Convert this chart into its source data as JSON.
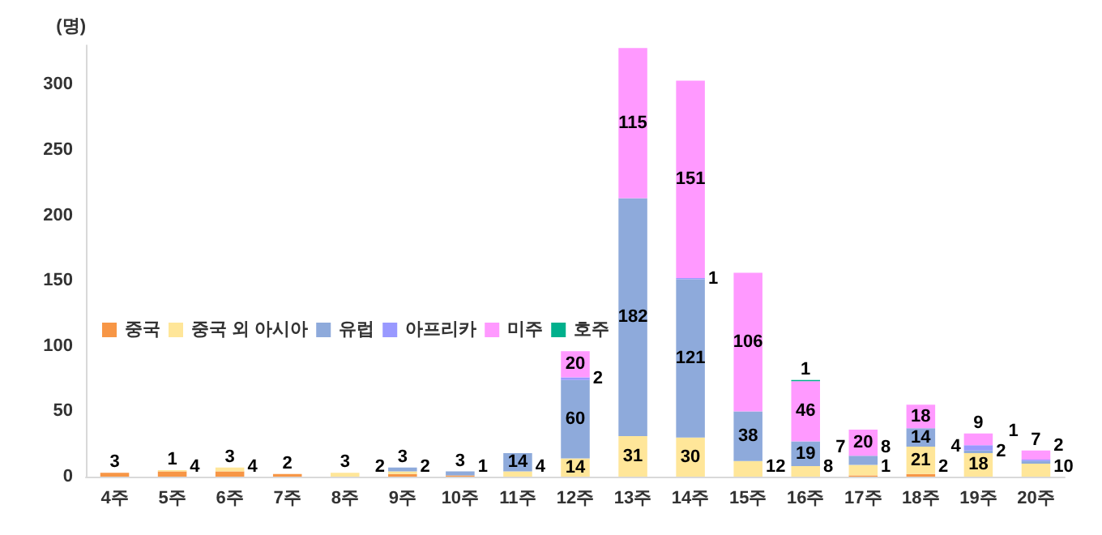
{
  "chart_data": {
    "type": "bar",
    "stacked": true,
    "ylabel": "(명)",
    "categories": [
      "4주",
      "5주",
      "6주",
      "7주",
      "8주",
      "9주",
      "10주",
      "11주",
      "12주",
      "13주",
      "14주",
      "15주",
      "16주",
      "17주",
      "18주",
      "19주",
      "20주"
    ],
    "series": [
      {
        "name": "중국",
        "color": "#f79646",
        "values": [
          3,
          4,
          4,
          2,
          null,
          2,
          1,
          null,
          null,
          null,
          null,
          null,
          null,
          1,
          2,
          null,
          null
        ]
      },
      {
        "name": "중국 외 아시아",
        "color": "#ffe699",
        "values": [
          null,
          1,
          3,
          null,
          3,
          2,
          null,
          4,
          14,
          31,
          30,
          12,
          8,
          8,
          21,
          18,
          10
        ]
      },
      {
        "name": "유럽",
        "color": "#8eaadb",
        "values": [
          null,
          null,
          null,
          null,
          null,
          3,
          3,
          14,
          60,
          182,
          121,
          38,
          19,
          7,
          14,
          2,
          2
        ]
      },
      {
        "name": "아프리카",
        "color": "#9999ff",
        "values": [
          null,
          null,
          null,
          null,
          null,
          null,
          null,
          null,
          2,
          null,
          1,
          null,
          null,
          null,
          null,
          4,
          1
        ]
      },
      {
        "name": "미주",
        "color": "#ff99ff",
        "values": [
          null,
          null,
          null,
          null,
          null,
          null,
          null,
          null,
          20,
          115,
          151,
          106,
          46,
          20,
          18,
          9,
          7
        ]
      },
      {
        "name": "호주",
        "color": "#00b08c",
        "values": [
          null,
          null,
          null,
          null,
          null,
          null,
          null,
          null,
          null,
          null,
          null,
          null,
          1,
          null,
          null,
          null,
          null
        ]
      }
    ],
    "ylim": [
      0,
      330
    ],
    "yticks": [
      0,
      50,
      100,
      150,
      200,
      250,
      300
    ],
    "grid": false,
    "legend": "bottom left",
    "data_labels": true
  }
}
